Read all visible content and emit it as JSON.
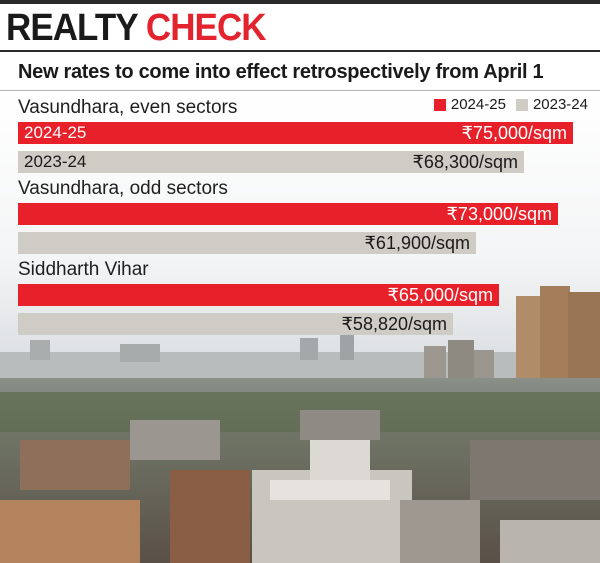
{
  "header": {
    "headline_part1": "REALTY",
    "headline_part2": "CHECK",
    "subtitle": "New rates to come into effect retrospectively from April 1"
  },
  "colors": {
    "current": "#e8202a",
    "previous": "#cfccc6",
    "headline_accent": "#e3232e"
  },
  "chart_data": {
    "type": "bar",
    "orientation": "horizontal",
    "unit": "₹/sqm",
    "legend_position": "top-right",
    "legend": [
      "2024-25",
      "2023-24"
    ],
    "categories": [
      "Vasundhara, even sectors",
      "Vasundhara, odd sectors",
      "Siddharth Vihar"
    ],
    "series": [
      {
        "name": "2024-25",
        "values": [
          75000,
          73000,
          65000
        ],
        "value_labels": [
          "₹75,000/sqm",
          "₹73,000/sqm",
          "₹65,000/sqm"
        ]
      },
      {
        "name": "2023-24",
        "values": [
          68300,
          61900,
          58820
        ],
        "value_labels": [
          "₹68,300/sqm",
          "₹61,900/sqm",
          "₹58,820/sqm"
        ]
      }
    ],
    "in_bar_labels": [
      "2024-25",
      "2023-24"
    ],
    "xlim": [
      0,
      77000
    ],
    "grid": false
  }
}
